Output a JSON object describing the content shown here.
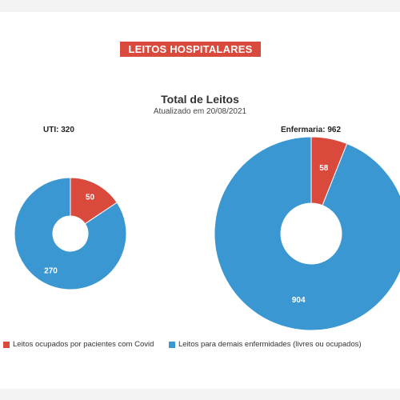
{
  "banner": {
    "label": "LEITOS HOSPITALARES"
  },
  "chart_data": {
    "type": "pie",
    "title": "Total de Leitos",
    "subtitle": "Atualizado em 20/08/2021",
    "series_colors": {
      "covid": "#d94a3d",
      "other": "#3a97d2"
    },
    "legend": [
      {
        "key": "covid",
        "label": "Leitos ocupados por pacientes com Covid"
      },
      {
        "key": "other",
        "label": "Leitos para demais enfermidades (livres ou ocupados)"
      }
    ],
    "charts": [
      {
        "id": "uti",
        "label": "UTI: 320",
        "total": 320,
        "slices": [
          {
            "key": "covid",
            "value": 50,
            "label": "50"
          },
          {
            "key": "other",
            "value": 270,
            "label": "270"
          }
        ]
      },
      {
        "id": "enfermaria",
        "label": "Enfermaria: 962",
        "total": 962,
        "slices": [
          {
            "key": "covid",
            "value": 58,
            "label": "58"
          },
          {
            "key": "other",
            "value": 904,
            "label": "904"
          }
        ]
      }
    ]
  }
}
